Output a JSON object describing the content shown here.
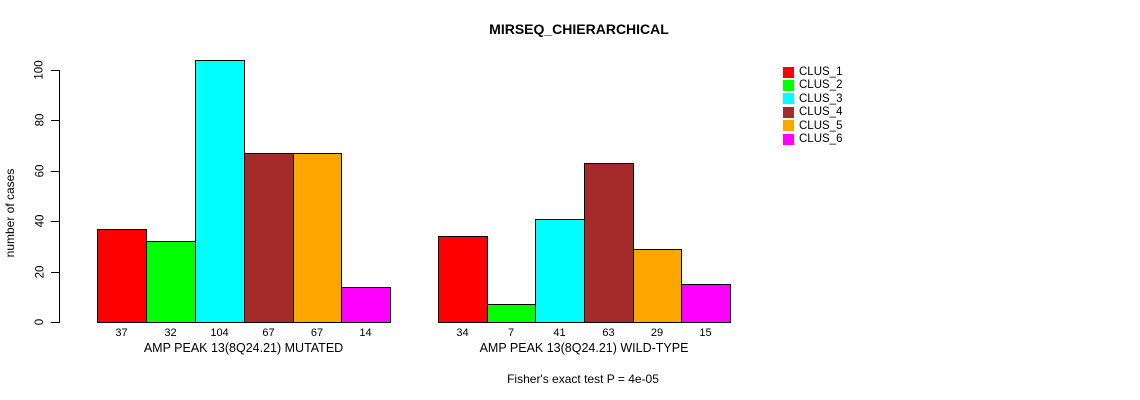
{
  "title": "MIRSEQ_CHIERARCHICAL",
  "background_color": "#FFFFFF",
  "chart_data": {
    "type": "bar",
    "title": "MIRSEQ_CHIERARCHICAL",
    "xlabel": "",
    "ylabel": "number of cases",
    "ylim": [
      0,
      100
    ],
    "yticks": [
      0,
      20,
      40,
      60,
      80,
      100
    ],
    "grid": false,
    "legend_position": "top-right",
    "bar_border_color": "#000000",
    "legend": [
      {
        "name": "CLUS_1",
        "color": "#FF0000"
      },
      {
        "name": "CLUS_2",
        "color": "#00FF00"
      },
      {
        "name": "CLUS_3",
        "color": "#00FFFF"
      },
      {
        "name": "CLUS_4",
        "color": "#A52A2A"
      },
      {
        "name": "CLUS_5",
        "color": "#FFA500"
      },
      {
        "name": "CLUS_6",
        "color": "#FF00FF"
      }
    ],
    "groups": [
      {
        "label": "AMP PEAK 13(8Q24.21) MUTATED",
        "values": [
          37,
          32,
          104,
          67,
          67,
          14
        ],
        "value_labels": [
          "37",
          "32",
          "104",
          "67",
          "67",
          "14"
        ]
      },
      {
        "label": "AMP PEAK 13(8Q24.21) WILD-TYPE",
        "values": [
          34,
          7,
          41,
          63,
          29,
          15
        ],
        "value_labels": [
          "34",
          "7",
          "41",
          "63",
          "29",
          "15"
        ]
      }
    ],
    "annotation": "Fisher's exact test P = 4e-05"
  }
}
